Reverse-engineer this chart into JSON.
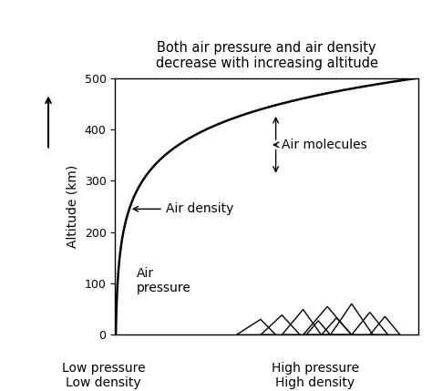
{
  "title": "Both air pressure and air density\ndecrease with increasing altitude",
  "ylabel": "Altitude (km)",
  "ylim": [
    0,
    500
  ],
  "xlim": [
    0,
    1
  ],
  "yticks": [
    0,
    100,
    200,
    300,
    400,
    500
  ],
  "xlabel_left": "Low pressure\nLow density",
  "xlabel_right": "High pressure\nHigh density",
  "air_pressure_label": "Air\npressure",
  "air_density_label": "Air density",
  "air_molecules_label": "Air molecules",
  "curve_scale": 500,
  "curve_decay": 0.012,
  "bg_color": "#ffffff",
  "line_color": "#000000",
  "title_fontsize": 10.5,
  "label_fontsize": 10,
  "axis_label_fontsize": 10,
  "tick_fontsize": 9
}
